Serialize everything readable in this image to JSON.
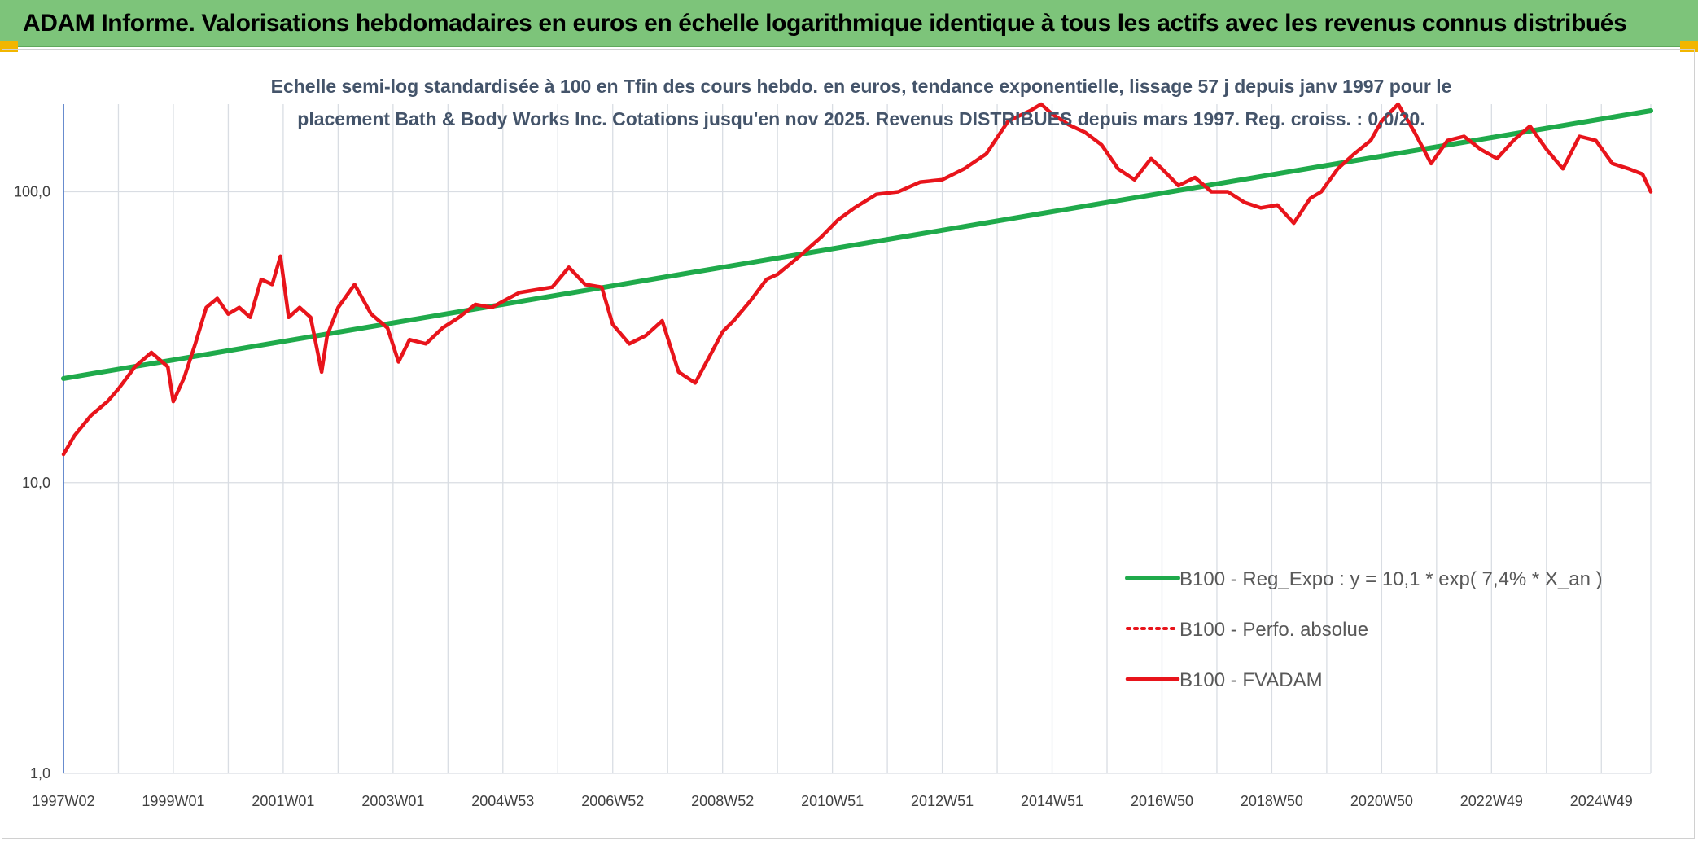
{
  "header": {
    "title": "ADAM Informe. Valorisations hebdomadaires en euros en échelle logarithmique identique à tous les actifs avec les revenus connus distribués"
  },
  "chart_data": {
    "type": "line",
    "title_lines": [
      "Echelle semi-log standardisée à 100 en Tfin des cours hebdo. en euros, tendance exponentielle, lissage 57 j depuis janv 1997 pour le",
      "placement Bath & Body Works Inc. Cotations jusqu'en nov 2025. Revenus DISTRIBUES depuis mars 1997. Reg. croiss. : 0,0/20."
    ],
    "y_scale": "log",
    "ylim": [
      1,
      200
    ],
    "y_ticks": [
      {
        "value": 1,
        "label": "1,0"
      },
      {
        "value": 10,
        "label": "10,0"
      },
      {
        "value": 100,
        "label": "100,0"
      }
    ],
    "xlim": [
      1997.0,
      2025.9
    ],
    "x_ticks": [
      {
        "value": 1997.0,
        "label": "1997W02"
      },
      {
        "value": 1999.0,
        "label": "1999W01"
      },
      {
        "value": 2001.0,
        "label": "2001W01"
      },
      {
        "value": 2003.0,
        "label": "2003W01"
      },
      {
        "value": 2005.0,
        "label": "2004W53"
      },
      {
        "value": 2007.0,
        "label": "2006W52"
      },
      {
        "value": 2009.0,
        "label": "2008W52"
      },
      {
        "value": 2011.0,
        "label": "2010W51"
      },
      {
        "value": 2013.0,
        "label": "2012W51"
      },
      {
        "value": 2015.0,
        "label": "2014W51"
      },
      {
        "value": 2017.0,
        "label": "2016W50"
      },
      {
        "value": 2019.0,
        "label": "2018W50"
      },
      {
        "value": 2021.0,
        "label": "2020W50"
      },
      {
        "value": 2023.0,
        "label": "2022W49"
      },
      {
        "value": 2025.0,
        "label": "2024W49"
      }
    ],
    "grid": "vertical and horizontal",
    "legend_position": "bottom-right",
    "colors": {
      "trend": "#1faa4b",
      "fvadam": "#e8141b",
      "perfo": "#e8141b",
      "axis": "#4472c4",
      "grid": "#d9dde3"
    },
    "series": [
      {
        "name": "B100 - Reg_Expo : y = 10,1 * exp( 7,4% *  X_an )",
        "style": "solid-thick",
        "color": "#1faa4b",
        "x": [
          1997.0,
          2025.9
        ],
        "y": [
          22.8,
          190
        ]
      },
      {
        "name": "B100 - Perfo. absolue",
        "style": "dotted",
        "color": "#e8141b",
        "x": [],
        "y": []
      },
      {
        "name": "B100 - FVADAM",
        "style": "solid",
        "color": "#e8141b",
        "x": [
          1997.0,
          1997.2,
          1997.5,
          1997.8,
          1998.0,
          1998.3,
          1998.6,
          1998.9,
          1999.0,
          1999.2,
          1999.4,
          1999.6,
          1999.8,
          2000.0,
          2000.2,
          2000.4,
          2000.6,
          2000.8,
          2000.95,
          2001.1,
          2001.3,
          2001.5,
          2001.7,
          2001.8,
          2002.0,
          2002.3,
          2002.6,
          2002.9,
          2003.1,
          2003.3,
          2003.6,
          2003.9,
          2004.2,
          2004.5,
          2004.8,
          2005.0,
          2005.3,
          2005.6,
          2005.9,
          2006.2,
          2006.5,
          2006.8,
          2007.0,
          2007.3,
          2007.6,
          2007.9,
          2008.2,
          2008.5,
          2008.8,
          2009.0,
          2009.2,
          2009.5,
          2009.8,
          2010.0,
          2010.4,
          2010.8,
          2011.1,
          2011.4,
          2011.8,
          2012.2,
          2012.6,
          2013.0,
          2013.4,
          2013.8,
          2014.2,
          2014.6,
          2014.8,
          2015.0,
          2015.3,
          2015.6,
          2015.9,
          2016.2,
          2016.5,
          2016.8,
          2017.0,
          2017.3,
          2017.6,
          2017.9,
          2018.2,
          2018.5,
          2018.8,
          2019.1,
          2019.4,
          2019.7,
          2019.9,
          2020.2,
          2020.5,
          2020.8,
          2021.0,
          2021.3,
          2021.6,
          2021.9,
          2022.2,
          2022.5,
          2022.8,
          2023.1,
          2023.4,
          2023.7,
          2024.0,
          2024.3,
          2024.6,
          2024.9,
          2025.2,
          2025.5,
          2025.75,
          2025.9
        ],
        "y": [
          12.5,
          14.5,
          17,
          19,
          21,
          25,
          28,
          25,
          19,
          23,
          30,
          40,
          43,
          38,
          40,
          37,
          50,
          48,
          60,
          37,
          40,
          37,
          24,
          32,
          40,
          48,
          38,
          34,
          26,
          31,
          30,
          34,
          37,
          41,
          40,
          42,
          45,
          46,
          47,
          55,
          48,
          47,
          35,
          30,
          32,
          36,
          24,
          22,
          28,
          33,
          36,
          42,
          50,
          52,
          60,
          70,
          80,
          88,
          98,
          100,
          108,
          110,
          120,
          135,
          175,
          190,
          200,
          185,
          170,
          160,
          145,
          120,
          110,
          130,
          120,
          105,
          112,
          100,
          100,
          92,
          88,
          90,
          78,
          95,
          100,
          120,
          135,
          150,
          175,
          200,
          160,
          125,
          150,
          155,
          140,
          130,
          150,
          168,
          140,
          120,
          155,
          150,
          125,
          120,
          115,
          100
        ]
      }
    ]
  }
}
